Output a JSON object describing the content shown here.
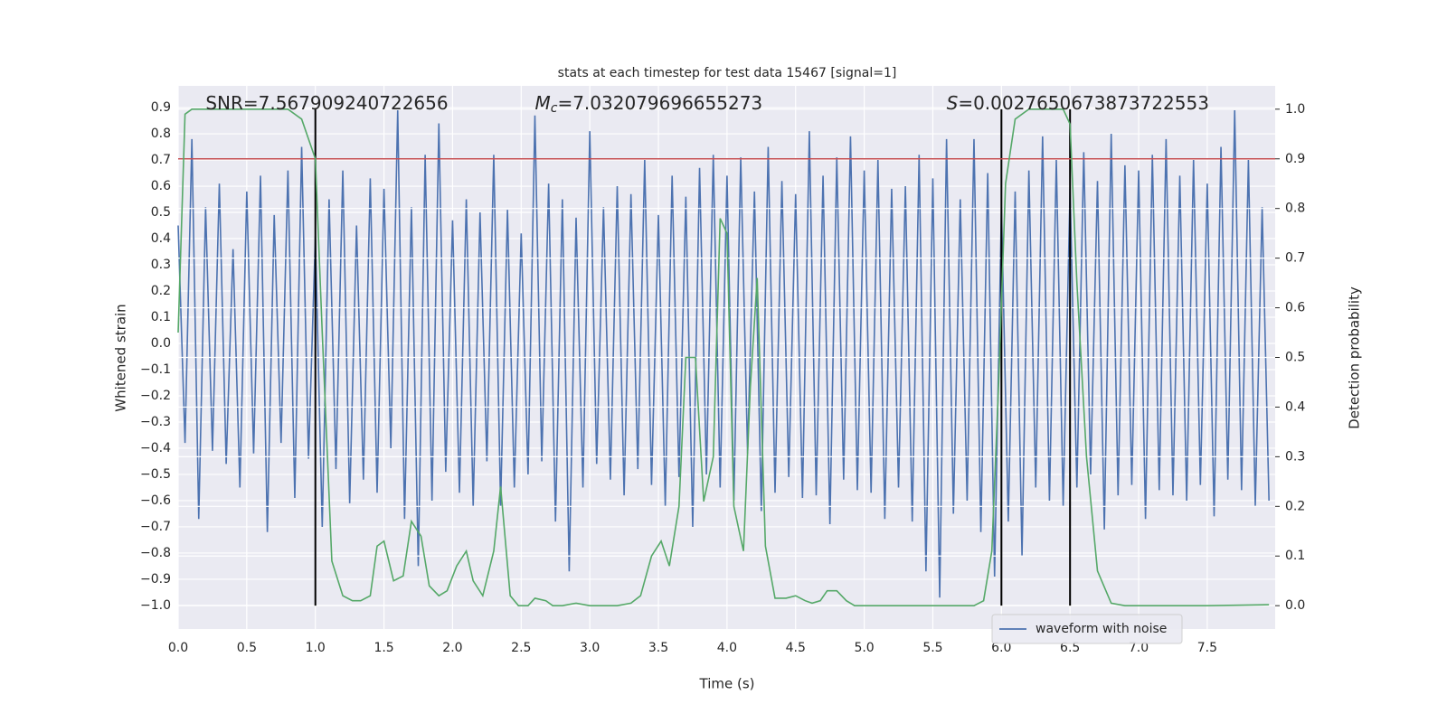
{
  "chart_data": {
    "type": "line",
    "title": "stats at each timestep for test data 15467 [signal=1]",
    "xlabel": "Time (s)",
    "ylabel": "Whitened strain",
    "y2label": "Detection probability",
    "xlim": [
      0,
      7.995
    ],
    "ylim": [
      -1.09,
      0.983
    ],
    "y2lim": [
      -0.047,
      1.047
    ],
    "xticks": [
      {
        "value": 0,
        "label": "0.0"
      },
      0.5,
      {
        "value": 1,
        "label": "1.0"
      },
      1.5,
      {
        "value": 2,
        "label": "2.0"
      },
      2.5,
      {
        "value": 3,
        "label": "3.0"
      },
      3.5,
      {
        "value": 4,
        "label": "4.0"
      },
      4.5,
      {
        "value": 5,
        "label": "5.0"
      },
      5.5,
      {
        "value": 6,
        "label": "6.0"
      },
      6.5,
      {
        "value": 7,
        "label": "7.0"
      },
      7.5
    ],
    "yticks": [
      {
        "value": -1,
        "label": "−1.0"
      },
      {
        "value": -0.9,
        "label": "−0.9"
      },
      {
        "value": -0.8,
        "label": "−0.8"
      },
      {
        "value": -0.7,
        "label": "−0.7"
      },
      {
        "value": -0.6,
        "label": "−0.6"
      },
      {
        "value": -0.5,
        "label": "−0.5"
      },
      {
        "value": -0.4,
        "label": "−0.4"
      },
      {
        "value": -0.3,
        "label": "−0.3"
      },
      {
        "value": -0.2,
        "label": "−0.2"
      },
      {
        "value": -0.1,
        "label": "−0.1"
      },
      {
        "value": 0,
        "label": "0.0"
      },
      0.1,
      0.2,
      0.3,
      0.4,
      0.5,
      0.6,
      0.7,
      0.8,
      0.9
    ],
    "y2ticks": [
      {
        "value": 0,
        "label": "0.0"
      },
      0.1,
      0.2,
      0.3,
      0.4,
      0.5,
      0.6,
      0.7,
      0.8,
      0.9,
      {
        "value": 1,
        "label": "1.0"
      }
    ],
    "grid": true,
    "legend": "lower right",
    "background": "#eaeaf2",
    "annotations": [
      {
        "text": "SNR=7.567909240722656",
        "x": 0.2
      },
      {
        "symbol": "M",
        "subscript": "c",
        "text": "=7.032079696655273",
        "x": 2.6
      },
      {
        "symbol": "S",
        "text": "=0.0027650673873722553",
        "x": 5.6
      }
    ],
    "vlines": {
      "x": [
        1,
        6,
        6.5
      ],
      "ymin": 0,
      "ymax": 1,
      "axis": "y2",
      "color": "#000000"
    },
    "hline": {
      "value": 0.9,
      "axis": "y2",
      "color": "#c44e52"
    },
    "series": [
      {
        "name": "waveform with noise",
        "color": "#4c72b0",
        "x": [
          0,
          0.05,
          0.1,
          0.15,
          0.2,
          0.25,
          0.3,
          0.35,
          0.4,
          0.45,
          0.5,
          0.55,
          0.6,
          0.65,
          0.7,
          0.75,
          0.8,
          0.85,
          0.9,
          0.95,
          1,
          1.05,
          1.1,
          1.15,
          1.2,
          1.25,
          1.3,
          1.35,
          1.4,
          1.45,
          1.5,
          1.55,
          1.6,
          1.65,
          1.7,
          1.75,
          1.8,
          1.85,
          1.9,
          1.95,
          2,
          2.05,
          2.1,
          2.15,
          2.2,
          2.25,
          2.3,
          2.35,
          2.4,
          2.45,
          2.5,
          2.55,
          2.6,
          2.65,
          2.7,
          2.75,
          2.8,
          2.85,
          2.9,
          2.95,
          3,
          3.05,
          3.1,
          3.15,
          3.2,
          3.25,
          3.3,
          3.35,
          3.4,
          3.45,
          3.5,
          3.55,
          3.6,
          3.65,
          3.7,
          3.75,
          3.8,
          3.85,
          3.9,
          3.95,
          4,
          4.05,
          4.1,
          4.15,
          4.2,
          4.25,
          4.3,
          4.35,
          4.4,
          4.45,
          4.5,
          4.55,
          4.6,
          4.65,
          4.7,
          4.75,
          4.8,
          4.85,
          4.9,
          4.95,
          5,
          5.05,
          5.1,
          5.15,
          5.2,
          5.25,
          5.3,
          5.35,
          5.4,
          5.45,
          5.5,
          5.55,
          5.6,
          5.65,
          5.7,
          5.75,
          5.8,
          5.85,
          5.9,
          5.95,
          6,
          6.05,
          6.1,
          6.15,
          6.2,
          6.25,
          6.3,
          6.35,
          6.4,
          6.45,
          6.5,
          6.55,
          6.6,
          6.65,
          6.7,
          6.75,
          6.8,
          6.85,
          6.9,
          6.95,
          7,
          7.05,
          7.1,
          7.15,
          7.2,
          7.25,
          7.3,
          7.35,
          7.4,
          7.45,
          7.5,
          7.55,
          7.6,
          7.65,
          7.7,
          7.75,
          7.8,
          7.85,
          7.9,
          7.95
        ],
        "values": [
          0.45,
          -0.38,
          0.78,
          -0.67,
          0.52,
          -0.41,
          0.61,
          -0.46,
          0.36,
          -0.55,
          0.58,
          -0.42,
          0.64,
          -0.72,
          0.49,
          -0.38,
          0.66,
          -0.59,
          0.75,
          -0.44,
          0.41,
          -0.7,
          0.55,
          -0.48,
          0.66,
          -0.61,
          0.45,
          -0.52,
          0.63,
          -0.57,
          0.59,
          -0.4,
          0.89,
          -0.67,
          0.52,
          -0.85,
          0.72,
          -0.6,
          0.84,
          -0.49,
          0.47,
          -0.57,
          0.55,
          -0.62,
          0.5,
          -0.45,
          0.72,
          -0.62,
          0.51,
          -0.55,
          0.42,
          -0.5,
          0.87,
          -0.45,
          0.61,
          -0.68,
          0.55,
          -0.87,
          0.48,
          -0.55,
          0.81,
          -0.46,
          0.52,
          -0.52,
          0.6,
          -0.58,
          0.57,
          -0.48,
          0.7,
          -0.54,
          0.49,
          -0.62,
          0.64,
          -0.51,
          0.56,
          -0.7,
          0.67,
          -0.5,
          0.72,
          -0.55,
          0.64,
          -0.6,
          0.71,
          -0.42,
          0.58,
          -0.64,
          0.75,
          -0.57,
          0.62,
          -0.51,
          0.57,
          -0.59,
          0.81,
          -0.58,
          0.64,
          -0.69,
          0.71,
          -0.52,
          0.79,
          -0.56,
          0.66,
          -0.57,
          0.7,
          -0.67,
          0.59,
          -0.55,
          0.6,
          -0.68,
          0.72,
          -0.87,
          0.63,
          -0.97,
          0.78,
          -0.65,
          0.55,
          -0.6,
          0.78,
          -0.72,
          0.65,
          -0.89,
          0.52,
          -0.68,
          0.58,
          -0.81,
          0.66,
          -0.55,
          0.79,
          -0.6,
          0.7,
          -0.62,
          0.59,
          -0.55,
          0.73,
          -0.5,
          0.62,
          -0.71,
          0.8,
          -0.58,
          0.68,
          -0.54,
          0.66,
          -0.67,
          0.72,
          -0.56,
          0.78,
          -0.58,
          0.64,
          -0.6,
          0.7,
          -0.54,
          0.61,
          -0.66,
          0.75,
          -0.52,
          0.89,
          -0.56,
          0.7,
          -0.62,
          0.52,
          -0.6
        ]
      },
      {
        "color": "#55a868",
        "axis": "y2",
        "x": [
          0,
          0.05,
          0.1,
          0.2,
          0.4,
          0.6,
          0.8,
          0.9,
          1,
          1.05,
          1.12,
          1.2,
          1.27,
          1.33,
          1.4,
          1.45,
          1.5,
          1.57,
          1.64,
          1.7,
          1.77,
          1.83,
          1.9,
          1.96,
          2.03,
          2.1,
          2.15,
          2.22,
          2.3,
          2.35,
          2.42,
          2.48,
          2.55,
          2.6,
          2.68,
          2.73,
          2.8,
          2.9,
          3,
          3.1,
          3.2,
          3.3,
          3.37,
          3.45,
          3.52,
          3.58,
          3.65,
          3.7,
          3.77,
          3.83,
          3.9,
          3.95,
          4,
          4.05,
          4.12,
          4.17,
          4.22,
          4.28,
          4.35,
          4.43,
          4.5,
          4.57,
          4.62,
          4.68,
          4.73,
          4.8,
          4.87,
          4.93,
          5,
          5.2,
          5.5,
          5.8,
          5.87,
          5.93,
          5.98,
          6.03,
          6.1,
          6.2,
          6.35,
          6.45,
          6.5,
          6.55,
          6.62,
          6.7,
          6.8,
          6.9,
          7,
          7.5,
          7.95
        ],
        "values": [
          0.55,
          0.99,
          1,
          1,
          1,
          1,
          1,
          0.98,
          0.9,
          0.55,
          0.09,
          0.02,
          0.01,
          0.01,
          0.02,
          0.12,
          0.13,
          0.05,
          0.06,
          0.17,
          0.14,
          0.04,
          0.02,
          0.03,
          0.08,
          0.11,
          0.05,
          0.02,
          0.11,
          0.24,
          0.02,
          0,
          0,
          0.015,
          0.01,
          0,
          0,
          0.005,
          0,
          0,
          0,
          0.005,
          0.02,
          0.1,
          0.13,
          0.08,
          0.2,
          0.5,
          0.5,
          0.21,
          0.3,
          0.78,
          0.75,
          0.2,
          0.11,
          0.44,
          0.66,
          0.12,
          0.015,
          0.015,
          0.02,
          0.01,
          0.005,
          0.01,
          0.03,
          0.03,
          0.01,
          0,
          0,
          0,
          0,
          0,
          0.01,
          0.11,
          0.45,
          0.85,
          0.98,
          1,
          1,
          1,
          0.97,
          0.65,
          0.3,
          0.07,
          0.005,
          0,
          0,
          0,
          0.002
        ]
      }
    ]
  }
}
